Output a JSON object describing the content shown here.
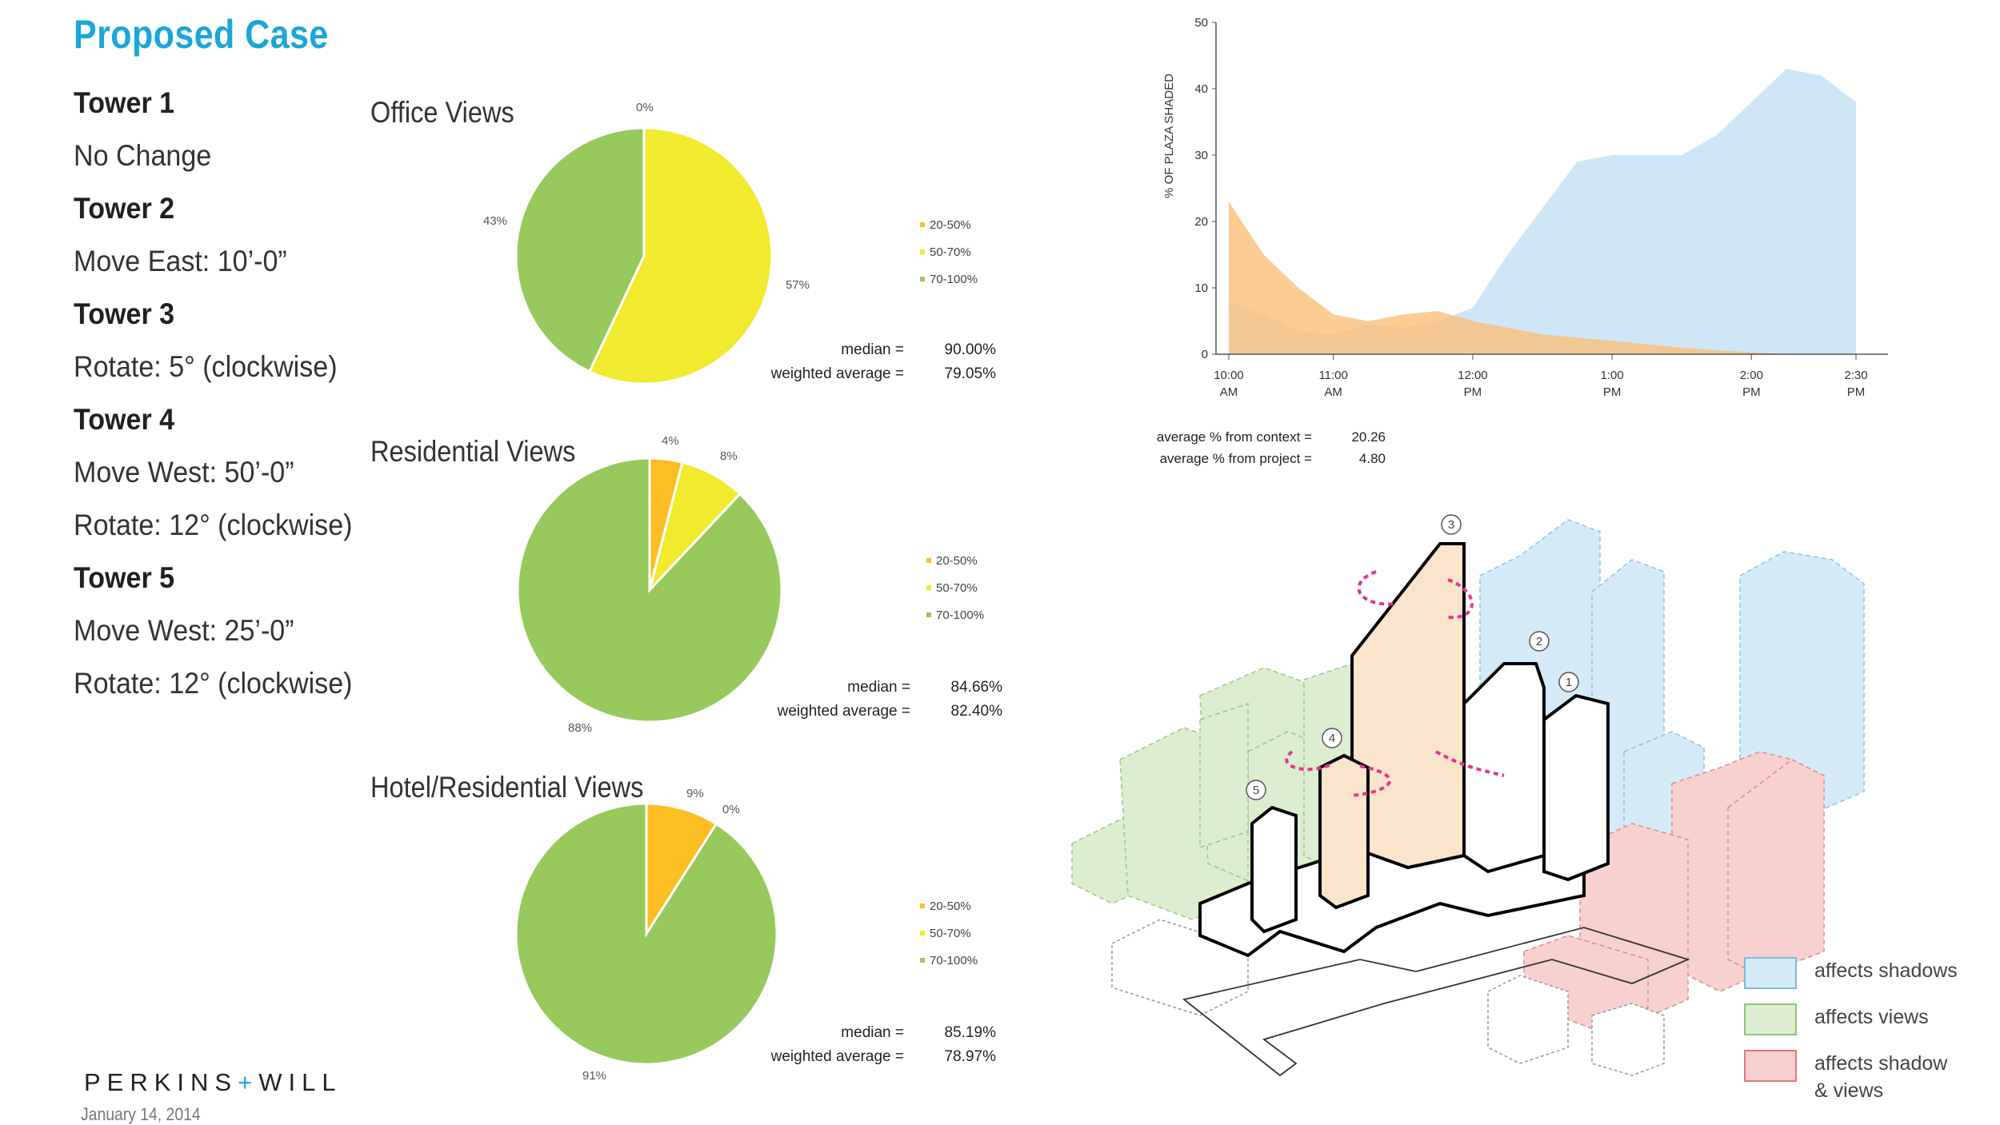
{
  "page": {
    "title": "Proposed Case",
    "logo_left": "PERKINS",
    "logo_plus": "+",
    "logo_right": "WILL",
    "date": "January 14, 2014"
  },
  "changes": [
    {
      "tower": "Tower 1",
      "lines": [
        "No Change"
      ]
    },
    {
      "tower": "Tower 2",
      "lines": [
        "Move East:  10’-0”"
      ]
    },
    {
      "tower": "Tower 3",
      "lines": [
        "Rotate: 5° (clockwise)"
      ]
    },
    {
      "tower": "Tower 4",
      "lines": [
        "Move West:  50’-0”",
        "Rotate: 12° (clockwise)"
      ]
    },
    {
      "tower": "Tower 5",
      "lines": [
        "Move West:  25’-0”",
        "Rotate: 12° (clockwise)"
      ]
    }
  ],
  "colors": {
    "c20_50": "#fbbf24",
    "c50_70": "#f1ea2e",
    "c70_100": "#98c95c",
    "shadow": "#d6ebf8",
    "views": "#dcedd0",
    "shadow_views": "#f8d0d0",
    "accent": "#1ba6d8"
  },
  "legend_labels": [
    "20-50%",
    "50-70%",
    "70-100%"
  ],
  "stats_labels": {
    "median": "median =",
    "weighted": "weighted average ="
  },
  "chart_data": [
    {
      "type": "pie",
      "title": "Office Views",
      "categories": [
        "20-50%",
        "50-70%",
        "70-100%"
      ],
      "values": [
        0,
        57,
        43
      ],
      "labels": [
        "0%",
        "57%",
        "43%"
      ],
      "median": "90.00%",
      "weighted_average": "79.05%"
    },
    {
      "type": "pie",
      "title": "Residential Views",
      "categories": [
        "20-50%",
        "50-70%",
        "70-100%"
      ],
      "values": [
        4,
        8,
        88
      ],
      "labels": [
        "4%",
        "8%",
        "88%"
      ],
      "median": "84.66%",
      "weighted_average": "82.40%"
    },
    {
      "type": "pie",
      "title": "Hotel/Residential Views",
      "categories": [
        "20-50%",
        "50-70%",
        "70-100%"
      ],
      "values": [
        9,
        0,
        91
      ],
      "labels": [
        "9%",
        "0%",
        "91%"
      ],
      "median": "85.19%",
      "weighted_average": "78.97%"
    },
    {
      "type": "area",
      "title": "",
      "xlabel": "",
      "ylabel": "% OF PLAZA SHADED",
      "ylim": [
        0,
        50
      ],
      "yticks": [
        0,
        10,
        20,
        30,
        40,
        50
      ],
      "xlim": [
        10.0,
        14.5
      ],
      "xticks": [
        {
          "x": 10.0,
          "l1": "10:00",
          "l2": "AM"
        },
        {
          "x": 10.75,
          "l1": "11:00",
          "l2": "AM"
        },
        {
          "x": 11.75,
          "l1": "12:00",
          "l2": "PM"
        },
        {
          "x": 12.75,
          "l1": "1:00",
          "l2": "PM"
        },
        {
          "x": 13.75,
          "l1": "2:00",
          "l2": "PM"
        },
        {
          "x": 14.5,
          "l1": "2:30",
          "l2": "PM"
        }
      ],
      "series": [
        {
          "color": "#cfe6f7",
          "x": [
            10.0,
            10.25,
            10.5,
            10.75,
            11.0,
            11.25,
            11.5,
            11.75,
            12.0,
            12.25,
            12.5,
            12.75,
            13.0,
            13.25,
            13.5,
            13.75,
            14.0,
            14.25,
            14.5
          ],
          "y": [
            8,
            6,
            3.5,
            3,
            4.5,
            4,
            5,
            7,
            15,
            22,
            29,
            30,
            30,
            30,
            33,
            38,
            43,
            42,
            38
          ]
        },
        {
          "color": "#fbbf7a",
          "x": [
            10.0,
            10.25,
            10.5,
            10.75,
            11.0,
            11.25,
            11.5,
            11.75,
            12.0,
            12.25,
            12.5,
            12.75,
            13.0,
            13.25,
            13.5,
            13.75,
            14.0,
            14.25,
            14.5
          ],
          "y": [
            23,
            15,
            10,
            6,
            5,
            6,
            6.5,
            5,
            4,
            3,
            2.5,
            2,
            1.5,
            1,
            0.6,
            0.3,
            0,
            0,
            0
          ]
        }
      ]
    }
  ],
  "averages": [
    {
      "label": "average % from context =",
      "value": "20.26"
    },
    {
      "label": "average % from project =",
      "value": "4.80"
    }
  ],
  "diagram": {
    "tower_numbers": [
      "1",
      "2",
      "3",
      "4",
      "5"
    ]
  },
  "key": [
    {
      "label": "affects shadows"
    },
    {
      "label": "affects views"
    },
    {
      "label": "affects shadow",
      "label2": "& views"
    }
  ]
}
